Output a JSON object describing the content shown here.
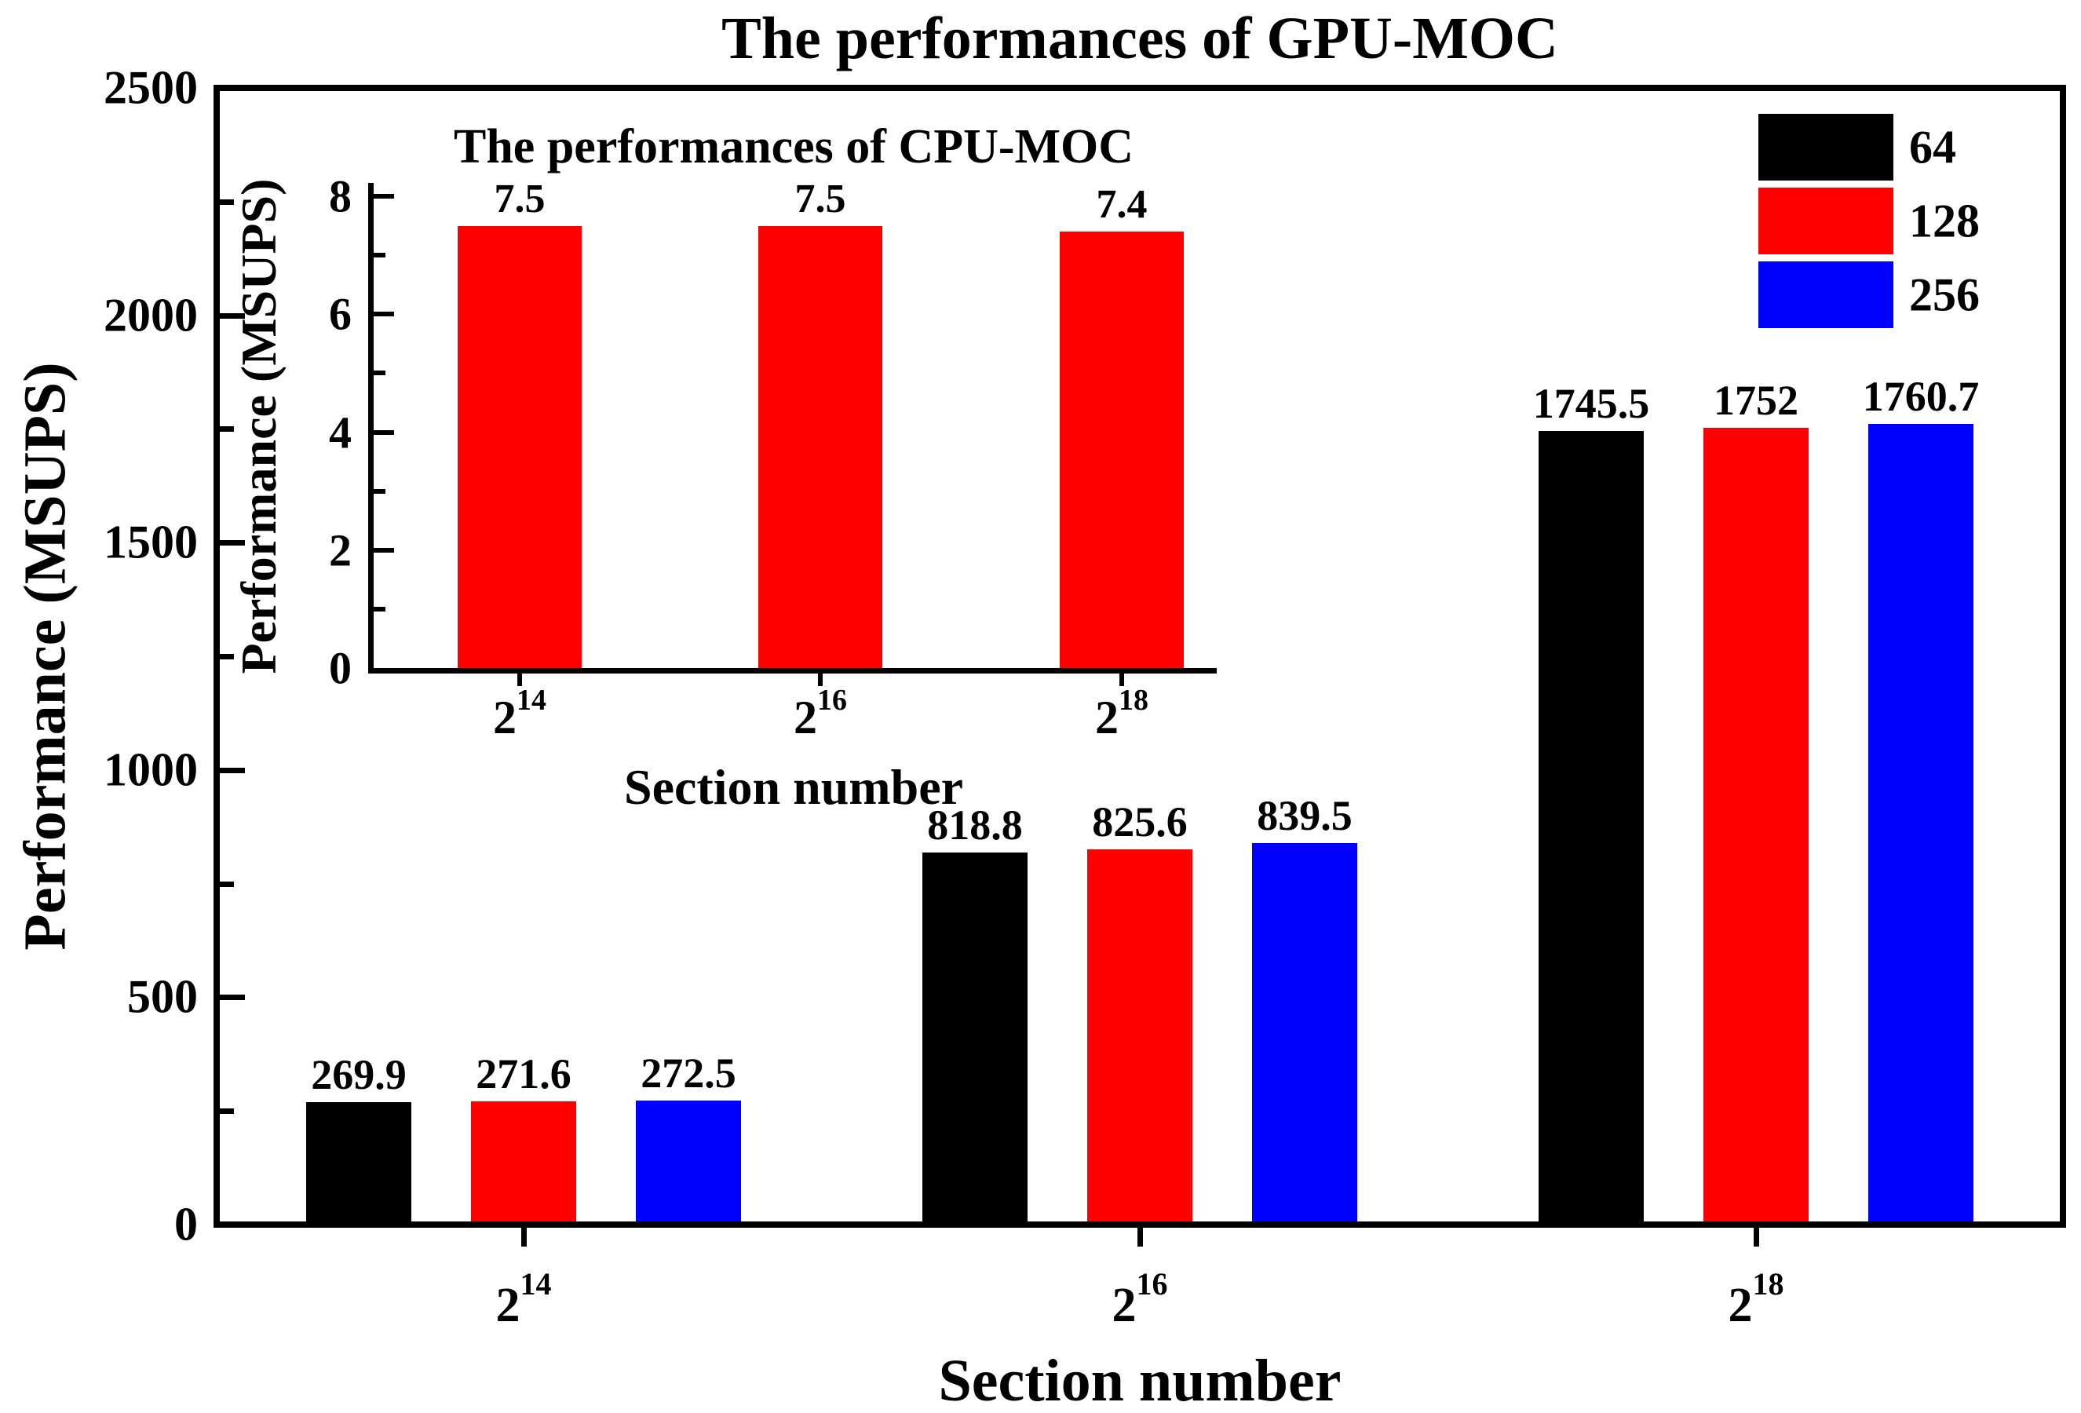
{
  "page": {
    "background": "#ffffff",
    "text_color": "#000000"
  },
  "chart_data": [
    {
      "id": "gpu-main",
      "type": "bar",
      "title": "The performances of GPU-MOC",
      "xlabel": "Section number",
      "ylabel": "Performance (MSUPS)",
      "ylim": [
        0,
        2500
      ],
      "ytick_step": 500,
      "ytick_minor_step": 250,
      "grid": false,
      "legend_position": "top-right-inside",
      "categories": [
        {
          "base": "2",
          "exp": "14"
        },
        {
          "base": "2",
          "exp": "16"
        },
        {
          "base": "2",
          "exp": "18"
        }
      ],
      "series": [
        {
          "name": "64",
          "color": "#000000",
          "values": [
            269.9,
            818.8,
            1745.5
          ]
        },
        {
          "name": "128",
          "color": "#ff0000",
          "values": [
            271.6,
            825.6,
            1752
          ]
        },
        {
          "name": "256",
          "color": "#0000ff",
          "values": [
            272.5,
            839.5,
            1760.7
          ]
        }
      ]
    },
    {
      "id": "cpu-inset",
      "type": "bar",
      "title": "The performances of CPU-MOC",
      "xlabel": "Section number",
      "ylabel": "Performance (MSUPS)",
      "ylim": [
        0,
        8
      ],
      "ytick_step": 2,
      "ytick_minor_step": 1,
      "grid": false,
      "legend_position": "none",
      "categories": [
        {
          "base": "2",
          "exp": "14"
        },
        {
          "base": "2",
          "exp": "16"
        },
        {
          "base": "2",
          "exp": "18"
        }
      ],
      "series": [
        {
          "name": "CPU-MOC",
          "color": "#ff0000",
          "values": [
            7.5,
            7.5,
            7.4
          ]
        }
      ]
    }
  ]
}
